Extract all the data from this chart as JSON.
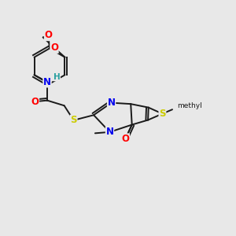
{
  "background_color": "#e8e8e8",
  "bond_color": "#1a1a1a",
  "atom_colors": {
    "O": "#ff0000",
    "N": "#0000ee",
    "S": "#cccc00",
    "H": "#2aa0a0",
    "C": "#1a1a1a"
  },
  "figsize": [
    3.0,
    3.0
  ],
  "dpi": 100,
  "lw": 1.4,
  "fs": 8.5,
  "fs_small": 7.5
}
